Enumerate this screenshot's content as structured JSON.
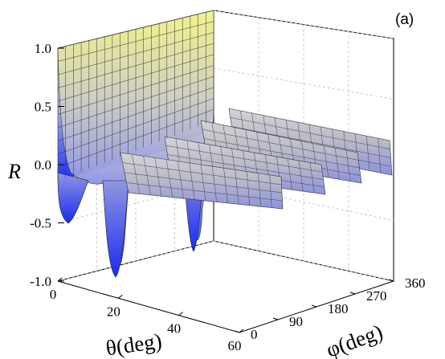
{
  "chart_data": {
    "type": "surface",
    "panel_label": "(a)",
    "zlabel": "R",
    "xlabel": "θ(deg)",
    "ylabel": "φ(deg)",
    "x_ticks": [
      0,
      20,
      40,
      60
    ],
    "y_ticks": [
      0,
      90,
      180,
      270,
      360
    ],
    "z_ticks": [
      "1.0",
      "0.5",
      "0.0",
      "-0.5",
      "-1.0"
    ],
    "xlim": [
      0,
      60
    ],
    "ylim": [
      0,
      360
    ],
    "zlim": [
      -1.0,
      1.0
    ],
    "grid": true,
    "colormap": [
      "#1f2ff0",
      "#9aa1e6",
      "#c7c7c7",
      "#f0f08a"
    ],
    "surface_profile_theta": [
      {
        "x": 0,
        "z": 1.0
      },
      {
        "x": 2,
        "z": 0.92
      },
      {
        "x": 5,
        "z": 0.55
      },
      {
        "x": 8,
        "z": 0.12
      },
      {
        "x": 12,
        "z": -0.05
      },
      {
        "x": 20,
        "z": -0.05
      },
      {
        "x": 30,
        "z": -0.08
      },
      {
        "x": 40,
        "z": -0.12
      },
      {
        "x": 50,
        "z": -0.15
      },
      {
        "x": 60,
        "z": -0.18
      }
    ],
    "minima_phi": [
      0,
      90,
      180,
      270,
      360
    ],
    "minima_depth_R": [
      -0.45,
      -0.98,
      -0.85,
      -0.2,
      -0.15
    ]
  }
}
